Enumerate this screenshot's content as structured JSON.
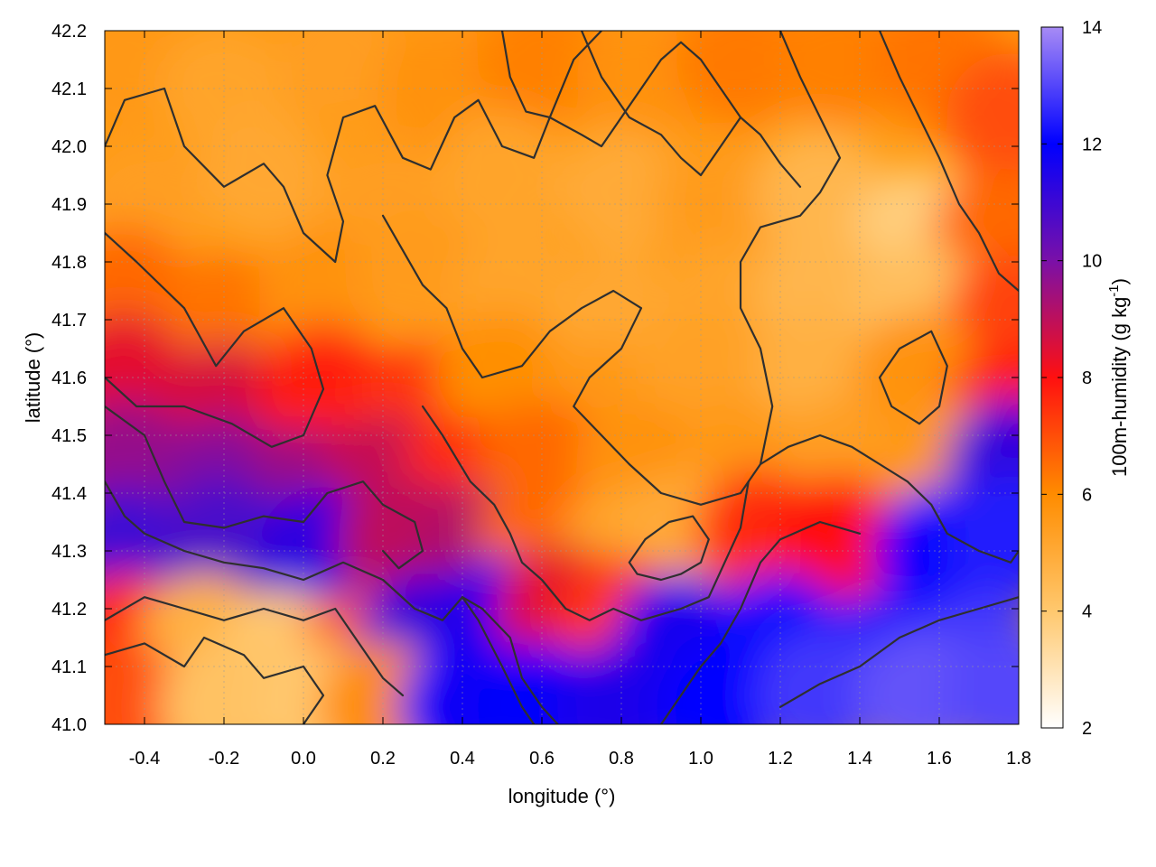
{
  "chart_data": {
    "type": "heatmap",
    "xlabel": "longitude (°)",
    "ylabel": "latitude (°)",
    "colorbar_label_main": "100m-humidity (g kg",
    "colorbar_label_sup": "-1",
    "colorbar_label_end": ")",
    "xlim": [
      -0.5,
      1.8
    ],
    "ylim": [
      41.0,
      42.2
    ],
    "clim": [
      2,
      14
    ],
    "x_ticks": [
      -0.4,
      -0.2,
      0.0,
      0.2,
      0.4,
      0.6,
      0.8,
      1.0,
      1.2,
      1.4,
      1.6,
      1.8
    ],
    "x_tick_labels": [
      "-0.4",
      "-0.2",
      "0.0",
      "0.2",
      "0.4",
      "0.6",
      "0.8",
      "1.0",
      "1.2",
      "1.4",
      "1.6",
      "1.8"
    ],
    "y_ticks": [
      41.0,
      41.1,
      41.2,
      41.3,
      41.4,
      41.5,
      41.6,
      41.7,
      41.8,
      41.9,
      42.0,
      42.1,
      42.2
    ],
    "y_tick_labels": [
      "41.0",
      "41.1",
      "41.2",
      "41.3",
      "41.4",
      "41.5",
      "41.6",
      "41.7",
      "41.8",
      "41.9",
      "42.0",
      "42.1",
      "42.2"
    ],
    "colorbar_ticks": [
      2,
      4,
      6,
      8,
      10,
      12,
      14
    ],
    "colorbar_tick_labels": [
      "2",
      "4",
      "6",
      "8",
      "10",
      "12",
      "14"
    ],
    "colormap": [
      {
        "value": 2,
        "color": "#ffffff"
      },
      {
        "value": 4,
        "color": "#ffc86e"
      },
      {
        "value": 6,
        "color": "#ff8c00"
      },
      {
        "value": 8,
        "color": "#ff1010"
      },
      {
        "value": 10,
        "color": "#7a10a8"
      },
      {
        "value": 12,
        "color": "#0000ff"
      },
      {
        "value": 14,
        "color": "#a78bf5"
      }
    ],
    "grid": true,
    "field_samples": [
      {
        "x": -0.45,
        "y": 42.15,
        "value": 5.6
      },
      {
        "x": -0.2,
        "y": 42.1,
        "value": 5.2
      },
      {
        "x": 0.1,
        "y": 42.15,
        "value": 5.4
      },
      {
        "x": 0.35,
        "y": 42.1,
        "value": 5.8
      },
      {
        "x": 0.6,
        "y": 42.15,
        "value": 6.2
      },
      {
        "x": 0.85,
        "y": 42.12,
        "value": 5.8
      },
      {
        "x": 1.1,
        "y": 42.15,
        "value": 6.3
      },
      {
        "x": 1.35,
        "y": 42.15,
        "value": 6.2
      },
      {
        "x": 1.6,
        "y": 42.15,
        "value": 6.4
      },
      {
        "x": 1.78,
        "y": 42.05,
        "value": 7.0
      },
      {
        "x": -0.4,
        "y": 41.9,
        "value": 5.4
      },
      {
        "x": -0.1,
        "y": 41.95,
        "value": 5.1
      },
      {
        "x": 0.2,
        "y": 41.9,
        "value": 5.4
      },
      {
        "x": 0.5,
        "y": 41.95,
        "value": 5.2
      },
      {
        "x": 0.8,
        "y": 41.92,
        "value": 5.0
      },
      {
        "x": 1.05,
        "y": 41.9,
        "value": 5.5
      },
      {
        "x": 1.3,
        "y": 41.92,
        "value": 4.6
      },
      {
        "x": 1.55,
        "y": 41.85,
        "value": 3.8
      },
      {
        "x": 1.75,
        "y": 41.85,
        "value": 6.6
      },
      {
        "x": -0.45,
        "y": 41.75,
        "value": 6.6
      },
      {
        "x": -0.2,
        "y": 41.7,
        "value": 6.4
      },
      {
        "x": 0.05,
        "y": 41.75,
        "value": 5.8
      },
      {
        "x": 0.3,
        "y": 41.78,
        "value": 5.5
      },
      {
        "x": 0.55,
        "y": 41.75,
        "value": 5.2
      },
      {
        "x": 0.8,
        "y": 41.7,
        "value": 5.1
      },
      {
        "x": 1.05,
        "y": 41.72,
        "value": 5.2
      },
      {
        "x": 1.3,
        "y": 41.75,
        "value": 4.6
      },
      {
        "x": 1.55,
        "y": 41.72,
        "value": 4.3
      },
      {
        "x": 1.78,
        "y": 41.7,
        "value": 7.2
      },
      {
        "x": -0.45,
        "y": 41.6,
        "value": 8.4
      },
      {
        "x": -0.2,
        "y": 41.55,
        "value": 8.6
      },
      {
        "x": 0.05,
        "y": 41.58,
        "value": 7.8
      },
      {
        "x": 0.3,
        "y": 41.55,
        "value": 7.4
      },
      {
        "x": 0.5,
        "y": 41.6,
        "value": 5.9
      },
      {
        "x": 0.75,
        "y": 41.55,
        "value": 5.6
      },
      {
        "x": 1.0,
        "y": 41.6,
        "value": 5.3
      },
      {
        "x": 1.3,
        "y": 41.6,
        "value": 4.8
      },
      {
        "x": 1.55,
        "y": 41.6,
        "value": 5.8
      },
      {
        "x": 1.78,
        "y": 41.55,
        "value": 7.8
      },
      {
        "x": -0.45,
        "y": 41.45,
        "value": 9.6
      },
      {
        "x": -0.2,
        "y": 41.42,
        "value": 9.8
      },
      {
        "x": 0.0,
        "y": 41.4,
        "value": 9.5
      },
      {
        "x": 0.2,
        "y": 41.42,
        "value": 8.9
      },
      {
        "x": 0.4,
        "y": 41.42,
        "value": 7.6
      },
      {
        "x": 0.6,
        "y": 41.45,
        "value": 6.6
      },
      {
        "x": 0.85,
        "y": 41.45,
        "value": 5.8
      },
      {
        "x": 1.1,
        "y": 41.45,
        "value": 5.6
      },
      {
        "x": 1.35,
        "y": 41.45,
        "value": 5.4
      },
      {
        "x": 1.6,
        "y": 41.45,
        "value": 5.6
      },
      {
        "x": 1.78,
        "y": 41.45,
        "value": 11.2
      },
      {
        "x": -0.45,
        "y": 41.3,
        "value": 11.0
      },
      {
        "x": -0.2,
        "y": 41.32,
        "value": 10.8
      },
      {
        "x": 0.05,
        "y": 41.3,
        "value": 11.3
      },
      {
        "x": 0.25,
        "y": 41.32,
        "value": 9.0
      },
      {
        "x": 0.45,
        "y": 41.3,
        "value": 9.2
      },
      {
        "x": 0.6,
        "y": 41.32,
        "value": 6.6
      },
      {
        "x": 0.8,
        "y": 41.3,
        "value": 5.2
      },
      {
        "x": 0.95,
        "y": 41.32,
        "value": 5.0
      },
      {
        "x": 1.15,
        "y": 41.33,
        "value": 7.6
      },
      {
        "x": 1.35,
        "y": 41.32,
        "value": 8.0
      },
      {
        "x": 1.6,
        "y": 41.3,
        "value": 12.0
      },
      {
        "x": 1.78,
        "y": 41.32,
        "value": 12.4
      },
      {
        "x": -0.45,
        "y": 41.15,
        "value": 7.6
      },
      {
        "x": -0.25,
        "y": 41.15,
        "value": 4.8
      },
      {
        "x": -0.05,
        "y": 41.12,
        "value": 4.0
      },
      {
        "x": 0.15,
        "y": 41.12,
        "value": 6.8
      },
      {
        "x": 0.3,
        "y": 41.15,
        "value": 11.2
      },
      {
        "x": 0.5,
        "y": 41.18,
        "value": 11.6
      },
      {
        "x": 0.65,
        "y": 41.2,
        "value": 8.4
      },
      {
        "x": 0.8,
        "y": 41.18,
        "value": 7.4
      },
      {
        "x": 0.95,
        "y": 41.15,
        "value": 11.6
      },
      {
        "x": 1.2,
        "y": 41.15,
        "value": 12.1
      },
      {
        "x": 1.45,
        "y": 41.12,
        "value": 12.4
      },
      {
        "x": 1.7,
        "y": 41.12,
        "value": 12.8
      },
      {
        "x": -0.45,
        "y": 41.03,
        "value": 7.0
      },
      {
        "x": -0.2,
        "y": 41.03,
        "value": 4.2
      },
      {
        "x": 0.05,
        "y": 41.03,
        "value": 4.0
      },
      {
        "x": 0.2,
        "y": 41.03,
        "value": 6.0
      },
      {
        "x": 0.4,
        "y": 41.03,
        "value": 11.8
      },
      {
        "x": 0.6,
        "y": 41.03,
        "value": 11.9
      },
      {
        "x": 0.8,
        "y": 41.03,
        "value": 11.5
      },
      {
        "x": 1.05,
        "y": 41.03,
        "value": 12.0
      },
      {
        "x": 1.3,
        "y": 41.05,
        "value": 12.8
      },
      {
        "x": 1.55,
        "y": 41.05,
        "value": 13.2
      },
      {
        "x": 1.78,
        "y": 41.05,
        "value": 13.0
      }
    ],
    "contours": [
      [
        [
          -0.5,
          42.0
        ],
        [
          -0.45,
          42.08
        ],
        [
          -0.35,
          42.1
        ],
        [
          -0.3,
          42.0
        ],
        [
          -0.2,
          41.93
        ],
        [
          -0.1,
          41.97
        ],
        [
          -0.05,
          41.93
        ],
        [
          0.0,
          41.85
        ],
        [
          0.08,
          41.8
        ],
        [
          0.1,
          41.87
        ],
        [
          0.06,
          41.95
        ],
        [
          0.1,
          42.05
        ],
        [
          0.18,
          42.07
        ],
        [
          0.25,
          41.98
        ],
        [
          0.32,
          41.96
        ],
        [
          0.38,
          42.05
        ],
        [
          0.44,
          42.08
        ],
        [
          0.5,
          42.0
        ],
        [
          0.58,
          41.98
        ],
        [
          0.62,
          42.05
        ],
        [
          0.68,
          42.15
        ],
        [
          0.75,
          42.2
        ]
      ],
      [
        [
          -0.5,
          41.85
        ],
        [
          -0.42,
          41.8
        ],
        [
          -0.3,
          41.72
        ],
        [
          -0.22,
          41.62
        ],
        [
          -0.15,
          41.68
        ],
        [
          -0.05,
          41.72
        ],
        [
          0.02,
          41.65
        ],
        [
          0.05,
          41.58
        ],
        [
          0.0,
          41.5
        ],
        [
          -0.08,
          41.48
        ],
        [
          -0.18,
          41.52
        ],
        [
          -0.3,
          41.55
        ],
        [
          -0.42,
          41.55
        ],
        [
          -0.5,
          41.6
        ]
      ],
      [
        [
          -0.5,
          41.55
        ],
        [
          -0.4,
          41.5
        ],
        [
          -0.35,
          41.42
        ],
        [
          -0.3,
          41.35
        ],
        [
          -0.2,
          41.34
        ],
        [
          -0.1,
          41.36
        ],
        [
          0.0,
          41.35
        ],
        [
          0.06,
          41.4
        ],
        [
          0.15,
          41.42
        ],
        [
          0.2,
          41.38
        ],
        [
          0.28,
          41.35
        ],
        [
          0.3,
          41.3
        ],
        [
          0.24,
          41.27
        ],
        [
          0.2,
          41.3
        ]
      ],
      [
        [
          -0.5,
          41.42
        ],
        [
          -0.45,
          41.36
        ],
        [
          -0.4,
          41.33
        ],
        [
          -0.3,
          41.3
        ],
        [
          -0.2,
          41.28
        ],
        [
          -0.1,
          41.27
        ],
        [
          0.0,
          41.25
        ],
        [
          0.1,
          41.28
        ],
        [
          0.2,
          41.25
        ],
        [
          0.28,
          41.2
        ],
        [
          0.35,
          41.18
        ],
        [
          0.4,
          41.22
        ],
        [
          0.44,
          41.18
        ],
        [
          0.5,
          41.1
        ],
        [
          0.55,
          41.03
        ],
        [
          0.58,
          41.0
        ]
      ],
      [
        [
          -0.5,
          41.12
        ],
        [
          -0.4,
          41.14
        ],
        [
          -0.3,
          41.1
        ],
        [
          -0.25,
          41.15
        ],
        [
          -0.15,
          41.12
        ],
        [
          -0.1,
          41.08
        ],
        [
          0.0,
          41.1
        ],
        [
          0.05,
          41.05
        ],
        [
          0.0,
          41.0
        ]
      ],
      [
        [
          -0.5,
          41.18
        ],
        [
          -0.4,
          41.22
        ],
        [
          -0.3,
          41.2
        ],
        [
          -0.2,
          41.18
        ],
        [
          -0.1,
          41.2
        ],
        [
          0.0,
          41.18
        ],
        [
          0.08,
          41.2
        ],
        [
          0.12,
          41.16
        ],
        [
          0.2,
          41.08
        ],
        [
          0.25,
          41.05
        ]
      ],
      [
        [
          0.2,
          41.88
        ],
        [
          0.25,
          41.82
        ],
        [
          0.3,
          41.76
        ],
        [
          0.36,
          41.72
        ],
        [
          0.4,
          41.65
        ],
        [
          0.45,
          41.6
        ],
        [
          0.55,
          41.62
        ],
        [
          0.62,
          41.68
        ],
        [
          0.7,
          41.72
        ],
        [
          0.78,
          41.75
        ],
        [
          0.85,
          41.72
        ],
        [
          0.8,
          41.65
        ],
        [
          0.72,
          41.6
        ],
        [
          0.68,
          41.55
        ],
        [
          0.75,
          41.5
        ],
        [
          0.82,
          41.45
        ],
        [
          0.9,
          41.4
        ],
        [
          1.0,
          41.38
        ],
        [
          1.1,
          41.4
        ],
        [
          1.15,
          41.45
        ],
        [
          1.18,
          41.55
        ],
        [
          1.15,
          41.65
        ],
        [
          1.1,
          41.72
        ],
        [
          1.1,
          41.8
        ],
        [
          1.15,
          41.86
        ],
        [
          1.25,
          41.88
        ],
        [
          1.3,
          41.92
        ],
        [
          1.35,
          41.98
        ],
        [
          1.3,
          42.05
        ],
        [
          1.25,
          42.12
        ],
        [
          1.2,
          42.2
        ]
      ],
      [
        [
          0.3,
          41.55
        ],
        [
          0.35,
          41.5
        ],
        [
          0.42,
          41.42
        ],
        [
          0.48,
          41.38
        ],
        [
          0.52,
          41.33
        ],
        [
          0.55,
          41.28
        ],
        [
          0.6,
          41.25
        ],
        [
          0.66,
          41.2
        ],
        [
          0.72,
          41.18
        ],
        [
          0.78,
          41.2
        ],
        [
          0.85,
          41.18
        ],
        [
          0.95,
          41.2
        ],
        [
          1.02,
          41.22
        ],
        [
          1.06,
          41.28
        ],
        [
          1.1,
          41.34
        ],
        [
          1.12,
          41.42
        ]
      ],
      [
        [
          0.82,
          41.28
        ],
        [
          0.86,
          41.32
        ],
        [
          0.92,
          41.35
        ],
        [
          0.98,
          41.36
        ],
        [
          1.02,
          41.32
        ],
        [
          1.0,
          41.28
        ],
        [
          0.95,
          41.26
        ],
        [
          0.9,
          41.25
        ],
        [
          0.84,
          41.26
        ],
        [
          0.82,
          41.28
        ]
      ],
      [
        [
          1.15,
          41.45
        ],
        [
          1.22,
          41.48
        ],
        [
          1.3,
          41.5
        ],
        [
          1.38,
          41.48
        ],
        [
          1.45,
          41.45
        ],
        [
          1.52,
          41.42
        ],
        [
          1.58,
          41.38
        ],
        [
          1.62,
          41.33
        ],
        [
          1.7,
          41.3
        ],
        [
          1.78,
          41.28
        ],
        [
          1.8,
          41.3
        ]
      ],
      [
        [
          1.45,
          41.6
        ],
        [
          1.5,
          41.65
        ],
        [
          1.58,
          41.68
        ],
        [
          1.62,
          41.62
        ],
        [
          1.6,
          41.55
        ],
        [
          1.55,
          41.52
        ],
        [
          1.48,
          41.55
        ],
        [
          1.45,
          41.6
        ]
      ],
      [
        [
          1.45,
          42.2
        ],
        [
          1.5,
          42.12
        ],
        [
          1.55,
          42.05
        ],
        [
          1.6,
          41.98
        ],
        [
          1.65,
          41.9
        ],
        [
          1.7,
          41.85
        ],
        [
          1.75,
          41.78
        ],
        [
          1.8,
          41.75
        ]
      ],
      [
        [
          0.7,
          42.2
        ],
        [
          0.75,
          42.12
        ],
        [
          0.82,
          42.05
        ],
        [
          0.9,
          42.02
        ],
        [
          0.95,
          41.98
        ],
        [
          1.0,
          41.95
        ],
        [
          1.05,
          42.0
        ],
        [
          1.1,
          42.05
        ],
        [
          1.15,
          42.02
        ],
        [
          1.2,
          41.97
        ],
        [
          1.25,
          41.93
        ]
      ],
      [
        [
          0.5,
          42.2
        ],
        [
          0.52,
          42.12
        ],
        [
          0.56,
          42.06
        ],
        [
          0.62,
          42.05
        ],
        [
          0.7,
          42.02
        ],
        [
          0.75,
          42.0
        ],
        [
          0.8,
          42.05
        ],
        [
          0.85,
          42.1
        ],
        [
          0.9,
          42.15
        ],
        [
          0.95,
          42.18
        ],
        [
          1.0,
          42.15
        ],
        [
          1.05,
          42.1
        ],
        [
          1.1,
          42.05
        ]
      ],
      [
        [
          0.4,
          41.22
        ],
        [
          0.45,
          41.2
        ],
        [
          0.52,
          41.15
        ],
        [
          0.55,
          41.08
        ],
        [
          0.6,
          41.03
        ],
        [
          0.64,
          41.0
        ]
      ],
      [
        [
          0.9,
          41.0
        ],
        [
          0.95,
          41.05
        ],
        [
          1.0,
          41.1
        ],
        [
          1.05,
          41.14
        ],
        [
          1.1,
          41.2
        ],
        [
          1.15,
          41.28
        ],
        [
          1.2,
          41.32
        ],
        [
          1.3,
          41.35
        ],
        [
          1.4,
          41.33
        ]
      ],
      [
        [
          1.2,
          41.03
        ],
        [
          1.3,
          41.07
        ],
        [
          1.4,
          41.1
        ],
        [
          1.5,
          41.15
        ],
        [
          1.6,
          41.18
        ],
        [
          1.7,
          41.2
        ],
        [
          1.8,
          41.22
        ]
      ]
    ]
  }
}
